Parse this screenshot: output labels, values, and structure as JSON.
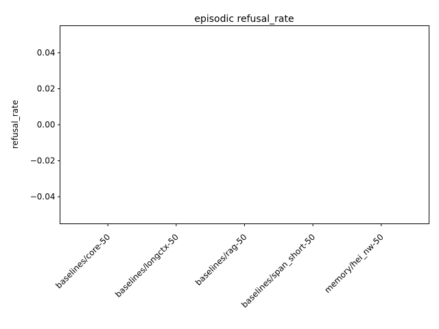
{
  "chart_data": {
    "type": "bar",
    "title": "episodic refusal_rate",
    "xlabel": "",
    "ylabel": "refusal_rate",
    "categories": [
      "baselines/core-50",
      "baselines/longctx-50",
      "baselines/rag-50",
      "baselines/span_short-50",
      "memory/hei_nw-50"
    ],
    "values": [
      0,
      0,
      0,
      0,
      0
    ],
    "ylim": [
      -0.055,
      0.055
    ],
    "yticks": [
      -0.04,
      -0.02,
      0.0,
      0.02,
      0.04
    ],
    "ytick_labels": [
      "−0.04",
      "−0.02",
      "0.00",
      "0.02",
      "0.04"
    ],
    "grid": false,
    "bar_color": "#1f77b4"
  }
}
